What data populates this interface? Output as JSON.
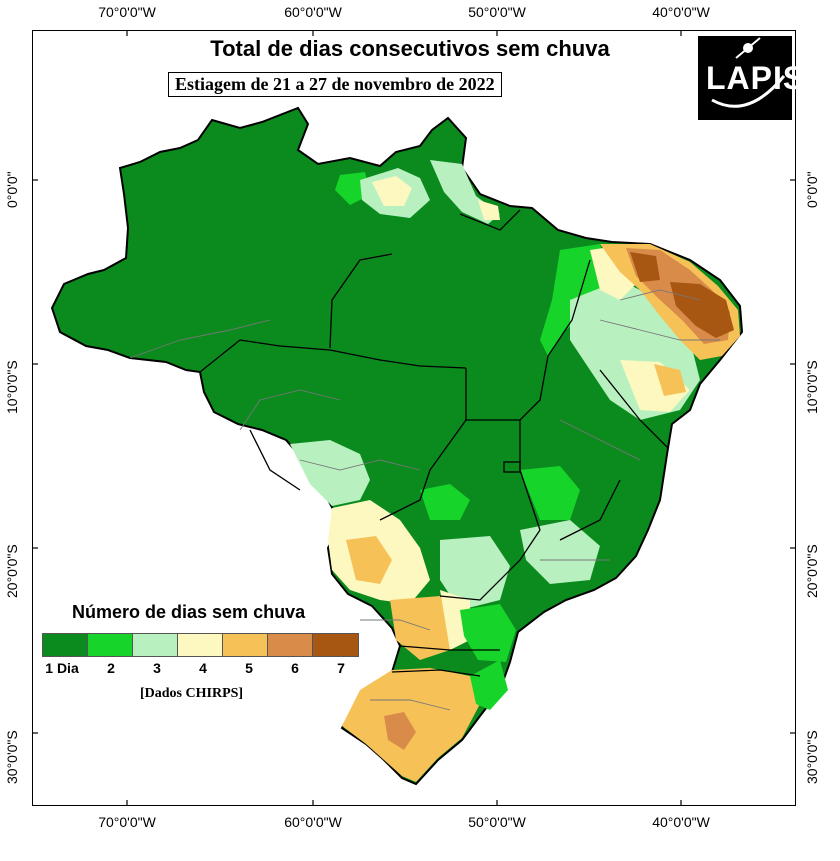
{
  "map": {
    "title": "Total de dias consecutivos sem chuva",
    "subtitle": "Estiagem de 21 a 27 de novembro de 2022",
    "logo_text": "LAPIS",
    "longitude_ticks": [
      "70°0'0\"W",
      "60°0'0\"W",
      "50°0'0\"W",
      "40°0'0\"W"
    ],
    "latitude_ticks": [
      "0°0'0\"",
      "10°0'0\"S",
      "20°0'0\"S",
      "30°0'0\"S"
    ]
  },
  "legend": {
    "title": "Número de dias sem chuva",
    "items": [
      {
        "label": "1 Dia",
        "color": "#0b8a1e"
      },
      {
        "label": "2",
        "color": "#16d42a"
      },
      {
        "label": "3",
        "color": "#b8f0c0"
      },
      {
        "label": "4",
        "color": "#fdf7c0"
      },
      {
        "label": "5",
        "color": "#f6c257"
      },
      {
        "label": "6",
        "color": "#d98c4a"
      },
      {
        "label": "7",
        "color": "#a85712"
      }
    ],
    "source": "[Dados CHIRPS]"
  }
}
